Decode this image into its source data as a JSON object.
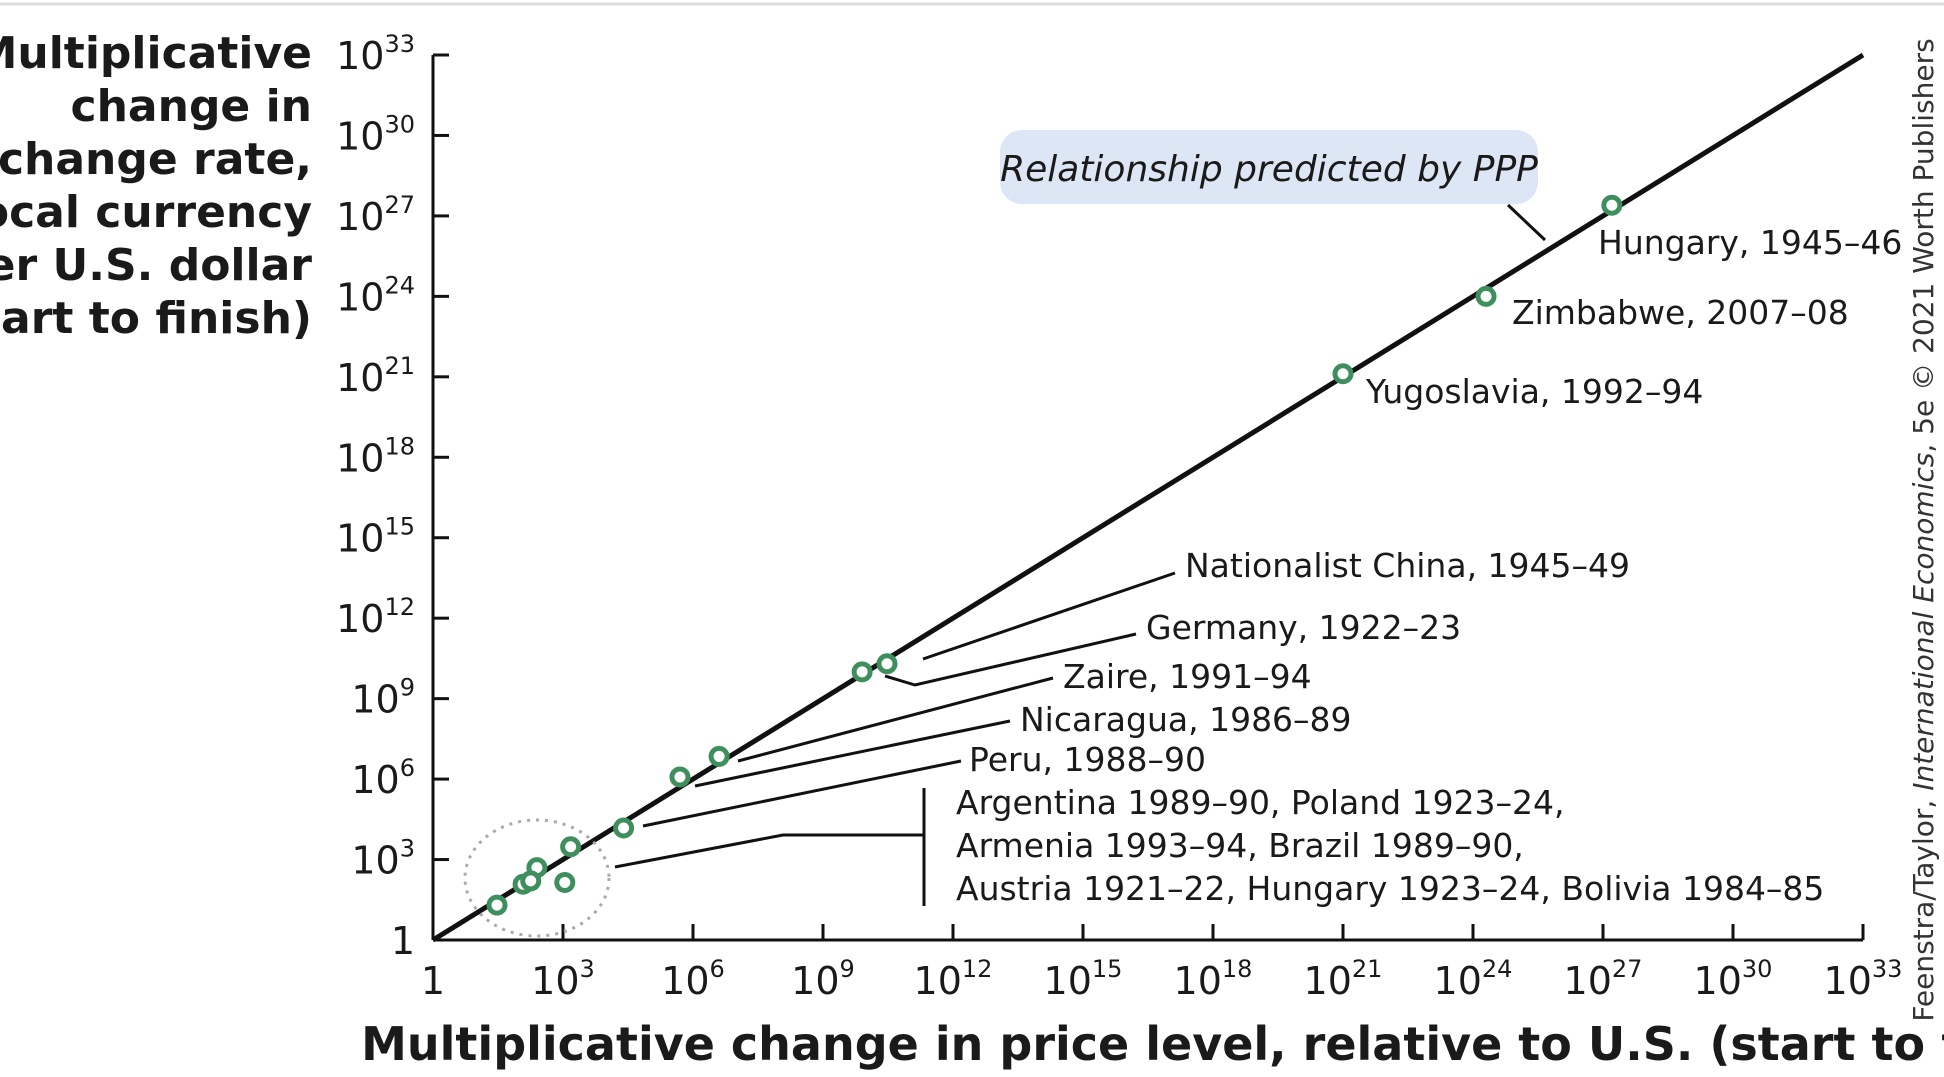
{
  "chart_data": {
    "type": "scatter",
    "ylabel_lines": [
      "Multiplicative",
      "change in",
      "exchange rate,",
      "local currency",
      "per U.S. dollar",
      "(start to finish)"
    ],
    "xlabel": "Multiplicative change in price level, relative to U.S. (start to finish)",
    "x_scale": "log",
    "y_scale": "log",
    "xlim": [
      1,
      1e+33
    ],
    "ylim": [
      1,
      1e+33
    ],
    "x_ticks": [
      {
        "base": "1",
        "exp": ""
      },
      {
        "base": "10",
        "exp": "3"
      },
      {
        "base": "10",
        "exp": "6"
      },
      {
        "base": "10",
        "exp": "9"
      },
      {
        "base": "10",
        "exp": "12"
      },
      {
        "base": "10",
        "exp": "15"
      },
      {
        "base": "10",
        "exp": "18"
      },
      {
        "base": "10",
        "exp": "21"
      },
      {
        "base": "10",
        "exp": "24"
      },
      {
        "base": "10",
        "exp": "27"
      },
      {
        "base": "10",
        "exp": "30"
      },
      {
        "base": "10",
        "exp": "33"
      }
    ],
    "y_ticks": [
      {
        "base": "1",
        "exp": ""
      },
      {
        "base": "10",
        "exp": "3"
      },
      {
        "base": "10",
        "exp": "6"
      },
      {
        "base": "10",
        "exp": "9"
      },
      {
        "base": "10",
        "exp": "12"
      },
      {
        "base": "10",
        "exp": "15"
      },
      {
        "base": "10",
        "exp": "18"
      },
      {
        "base": "10",
        "exp": "21"
      },
      {
        "base": "10",
        "exp": "24"
      },
      {
        "base": "10",
        "exp": "27"
      },
      {
        "base": "10",
        "exp": "30"
      },
      {
        "base": "10",
        "exp": "33"
      }
    ],
    "ppp_line": {
      "from": [
        1,
        1
      ],
      "to": [
        1e+33,
        1e+33
      ],
      "label": "Relationship predicted by PPP"
    },
    "grid": false,
    "marker_color": "#3f8f5e",
    "callout_color": "#dde6f5",
    "points": [
      {
        "x": 1.6e+27,
        "y": 2.5e+27
      },
      {
        "x": 2e+24,
        "y": 1e+24
      },
      {
        "x": 1e+21,
        "y": 1.3e+21
      },
      {
        "x": 30000000000.0,
        "y": 20000000000.0
      },
      {
        "x": 8000000000.0,
        "y": 10000000000.0
      },
      {
        "x": 4000000.0,
        "y": 7000000.0
      },
      {
        "x": 500000.0,
        "y": 1200000.0
      },
      {
        "x": 25000.0,
        "y": 15000.0
      },
      {
        "x": 1500.0,
        "y": 3000.0
      },
      {
        "x": 250.0,
        "y": 500.0
      },
      {
        "x": 30.0,
        "y": 20.0
      },
      {
        "x": 120.0,
        "y": 120.0
      },
      {
        "x": 180.0,
        "y": 160.0
      },
      {
        "x": 1100.0,
        "y": 140.0
      }
    ],
    "labels": [
      {
        "text": "Hungary, 1945–46"
      },
      {
        "text": "Zimbabwe, 2007–08"
      },
      {
        "text": "Yugoslavia, 1992–94"
      },
      {
        "text": "Nationalist China, 1945–49"
      },
      {
        "text": "Germany, 1922–23"
      },
      {
        "text": "Zaire, 1991–94"
      },
      {
        "text": "Nicaragua, 1986–89"
      },
      {
        "text": "Peru, 1988–90"
      }
    ],
    "group_label_lines": [
      "Argentina 1989–90, Poland 1923–24,",
      "Armenia 1993–94,  Brazil 1989–90,",
      "Austria 1921–22, Hungary 1923–24, Bolivia 1984–85"
    ]
  },
  "credit_parts": [
    {
      "text": "Feenstra/Taylor, ",
      "italic": false
    },
    {
      "text": "International Economics",
      "italic": true
    },
    {
      "text": ", 5e © 2021 Worth Publishers",
      "italic": false
    }
  ]
}
